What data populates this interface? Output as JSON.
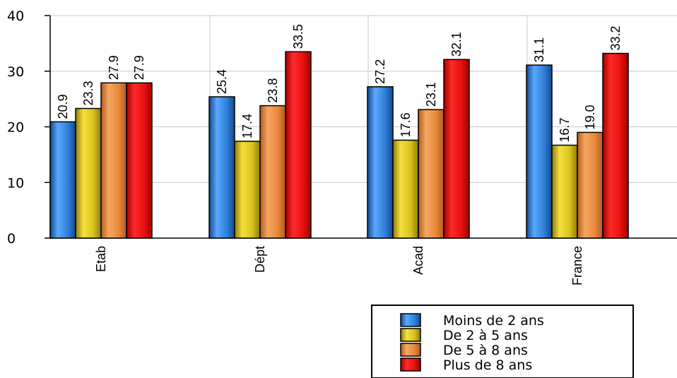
{
  "chart_data": {
    "type": "bar",
    "categories": [
      "Etab",
      "Dépt",
      "Acad",
      "France"
    ],
    "series": [
      {
        "name": "Moins de 2 ans",
        "values": [
          20.9,
          25.4,
          27.2,
          31.1
        ],
        "color": "#2f7fd8",
        "color_light": "#5aa8ff",
        "color_dark": "#14498f"
      },
      {
        "name": "De 2 à 5 ans",
        "values": [
          23.3,
          17.4,
          17.6,
          16.7
        ],
        "color": "#d9c21c",
        "color_light": "#f2e040",
        "color_dark": "#8f7a08"
      },
      {
        "name": "De 5 à 8 ans",
        "values": [
          27.9,
          23.8,
          23.1,
          19.0
        ],
        "color": "#e8873c",
        "color_light": "#f4a862",
        "color_dark": "#b55a1a"
      },
      {
        "name": "Plus de 8 ans",
        "values": [
          27.9,
          33.5,
          32.1,
          33.2
        ],
        "color": "#e61010",
        "color_light": "#ff2a2a",
        "color_dark": "#a00000"
      }
    ],
    "ylim": [
      0,
      40
    ],
    "yticks": [
      "0",
      "10",
      "20",
      "30",
      "40"
    ],
    "data_labels": [
      [
        "20.9",
        "25.4",
        "27.2",
        "31.1"
      ],
      [
        "23.3",
        "17.4",
        "17.6",
        "16.7"
      ],
      [
        "27.9",
        "23.8",
        "23.1",
        "19.0"
      ],
      [
        "27.9",
        "33.5",
        "32.1",
        "33.2"
      ]
    ],
    "grid": true,
    "legend_position": "bottom-right",
    "title": "",
    "xlabel": "",
    "ylabel": ""
  }
}
